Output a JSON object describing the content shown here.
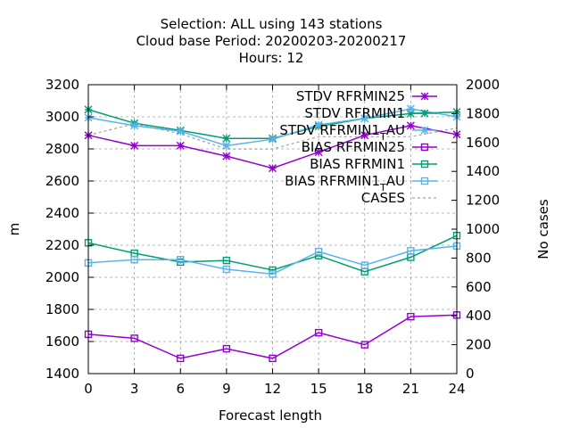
{
  "chart_data": {
    "type": "line",
    "title_lines": [
      "Selection: ALL using   143 stations",
      "Cloud base   Period: 20200203-20200217",
      "Hours:  12"
    ],
    "xlabel": "Forecast length",
    "ylabel": "m",
    "y2label": "No cases",
    "x": [
      0,
      3,
      6,
      9,
      12,
      15,
      18,
      21,
      24
    ],
    "xlim": [
      0,
      24
    ],
    "ylim": [
      1400,
      3200
    ],
    "y2lim": [
      0,
      2000
    ],
    "yticks": [
      1400,
      1600,
      1800,
      2000,
      2200,
      2400,
      2600,
      2800,
      3000,
      3200
    ],
    "y2ticks": [
      0,
      200,
      400,
      600,
      800,
      1000,
      1200,
      1400,
      1600,
      1800,
      2000
    ],
    "grid": true,
    "legend_position": "top-right",
    "series": [
      {
        "name": "STDV RFRMIN25",
        "color": "#9400d3",
        "marker": "star",
        "dash": false,
        "axis": "y",
        "values": [
          2885,
          2820,
          2820,
          2755,
          2680,
          2780,
          2885,
          2945,
          2890
        ]
      },
      {
        "name": "STDV RFRMIN1",
        "color": "#009e73",
        "marker": "star",
        "dash": false,
        "axis": "y",
        "values": [
          3045,
          2960,
          2915,
          2865,
          2865,
          2940,
          2990,
          3020,
          3030
        ]
      },
      {
        "name": "STDV RFRMIN1_TAU",
        "color": "#56b4e9",
        "marker": "star",
        "dash": false,
        "axis": "y",
        "values": [
          2995,
          2945,
          2910,
          2820,
          2860,
          2950,
          2990,
          3050,
          3000
        ]
      },
      {
        "name": "BIAS RFRMIN25",
        "color": "#9400d3",
        "marker": "square",
        "dash": false,
        "axis": "y",
        "values": [
          1645,
          1620,
          1495,
          1555,
          1495,
          1655,
          1580,
          1755,
          1765
        ]
      },
      {
        "name": "BIAS RFRMIN1",
        "color": "#009e73",
        "marker": "square",
        "dash": false,
        "axis": "y",
        "values": [
          2215,
          2150,
          2095,
          2105,
          2045,
          2135,
          2035,
          2125,
          2260
        ]
      },
      {
        "name": "BIAS RFRMIN1_TAU",
        "color": "#56b4e9",
        "marker": "square",
        "dash": false,
        "axis": "y",
        "values": [
          2090,
          2110,
          2110,
          2050,
          2020,
          2160,
          2075,
          2165,
          2195
        ]
      },
      {
        "name": "CASES",
        "color": "#a0a0a0",
        "marker": "none",
        "dash": true,
        "axis": "y2",
        "values": [
          1650,
          1730,
          1660,
          1555,
          1555,
          1640,
          1640,
          1640,
          1700
        ]
      }
    ]
  }
}
